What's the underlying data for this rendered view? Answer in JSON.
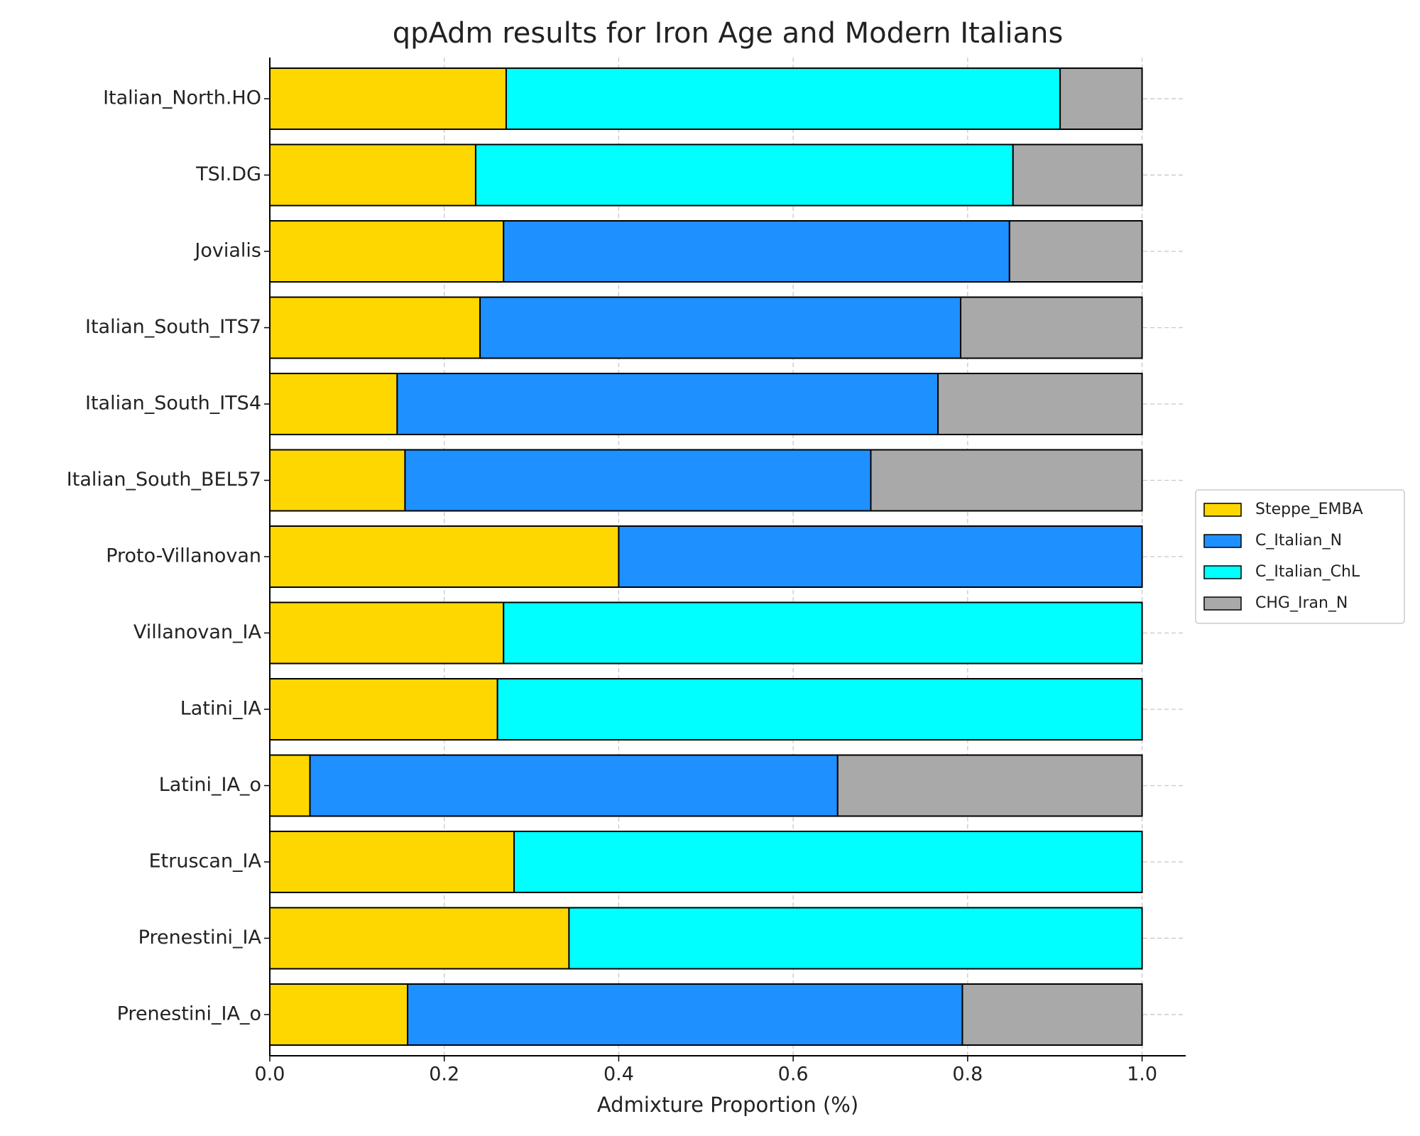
{
  "chart_data": {
    "type": "stacked-barh",
    "title": "qpAdm results for Iron Age and Modern Italians",
    "xlabel": "Admixture Proportion (%)",
    "categories": [
      "Italian_North.HO",
      "TSI.DG",
      "Jovialis",
      "Italian_South_ITS7",
      "Italian_South_ITS4",
      "Italian_South_BEL57",
      "Proto-Villanovan",
      "Villanovan_IA",
      "Latini_IA",
      "Latini_IA_o",
      "Etruscan_IA",
      "Prenestini_IA",
      "Prenestini_IA_o"
    ],
    "series": [
      {
        "name": "Steppe_EMBA",
        "color": "#FFD700",
        "values": [
          0.271,
          0.236,
          0.268,
          0.241,
          0.146,
          0.155,
          0.4,
          0.268,
          0.261,
          0.046,
          0.28,
          0.343,
          0.158
        ]
      },
      {
        "name": "C_Italian_N",
        "color": "#1E90FF",
        "values": [
          null,
          null,
          0.58,
          0.551,
          0.62,
          0.534,
          0.6,
          null,
          null,
          0.605,
          null,
          null,
          0.636
        ]
      },
      {
        "name": "C_Italian_ChL",
        "color": "#00FFFF",
        "values": [
          0.635,
          0.616,
          null,
          null,
          null,
          null,
          null,
          0.732,
          0.739,
          null,
          0.72,
          0.657,
          null
        ]
      },
      {
        "name": "CHG_Iran_N",
        "color": "#A9A9A9",
        "values": [
          0.094,
          0.148,
          0.152,
          0.208,
          0.234,
          0.311,
          null,
          null,
          null,
          0.349,
          null,
          null,
          0.206
        ]
      }
    ],
    "xlim": [
      0,
      1.05
    ],
    "xticks": [
      {
        "value": 0,
        "label": "0.0"
      },
      0.2,
      0.4,
      0.6,
      0.8,
      {
        "value": 1,
        "label": "1.0"
      }
    ],
    "grid": true,
    "legend": "right"
  }
}
